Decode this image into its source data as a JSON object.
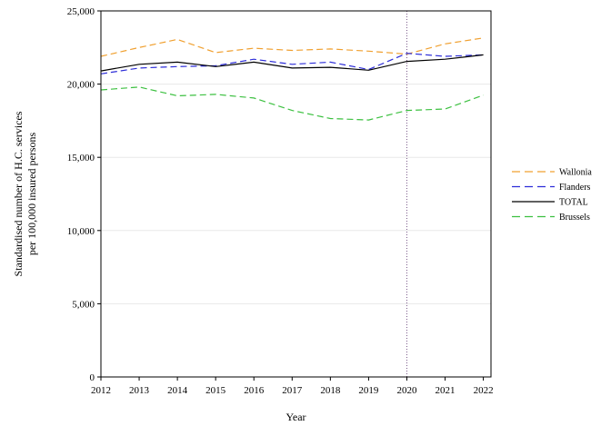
{
  "chart_data": {
    "type": "line",
    "title": "",
    "xlabel": "Year",
    "ylabel_lines": [
      "Standardised number of H.C. services",
      "per 100,000 insured persons"
    ],
    "x": [
      2012,
      2013,
      2014,
      2015,
      2016,
      2017,
      2018,
      2019,
      2020,
      2021,
      2022
    ],
    "x_tick_labels": [
      "2012",
      "2013",
      "2014",
      "2015",
      "2016",
      "2017",
      "2018",
      "2019",
      "2020",
      "2021",
      "2022"
    ],
    "xlim": [
      2012,
      2022.2
    ],
    "ylim": [
      0,
      25000
    ],
    "y_ticks": [
      0,
      5000,
      10000,
      15000,
      20000,
      25000
    ],
    "y_tick_labels": [
      "0",
      "5,000",
      "10,000",
      "15,000",
      "20,000",
      "25,000"
    ],
    "grid": "horizontal",
    "grid_color": "#e8e8e8",
    "reference_line": {
      "x": 2020,
      "style": "dotted",
      "color": "#7a5a8a"
    },
    "legend_position": "right",
    "series": [
      {
        "name": "Wallonia",
        "color": "#f0a030",
        "dash": "dashed",
        "values": [
          21900,
          22500,
          23050,
          22150,
          22450,
          22300,
          22400,
          22250,
          22050,
          22750,
          23150
        ]
      },
      {
        "name": "Flanders",
        "color": "#2c2cd8",
        "dash": "dashed",
        "values": [
          20700,
          21100,
          21200,
          21250,
          21700,
          21350,
          21500,
          21000,
          22100,
          21900,
          22000
        ]
      },
      {
        "name": "TOTAL",
        "color": "#000000",
        "dash": "solid",
        "values": [
          20900,
          21350,
          21500,
          21200,
          21500,
          21100,
          21150,
          20950,
          21550,
          21700,
          22000
        ]
      },
      {
        "name": "Brussels",
        "color": "#3cc040",
        "dash": "dashed",
        "values": [
          19600,
          19800,
          19200,
          19300,
          19050,
          18200,
          17650,
          17550,
          18200,
          18300,
          19250
        ]
      }
    ]
  }
}
